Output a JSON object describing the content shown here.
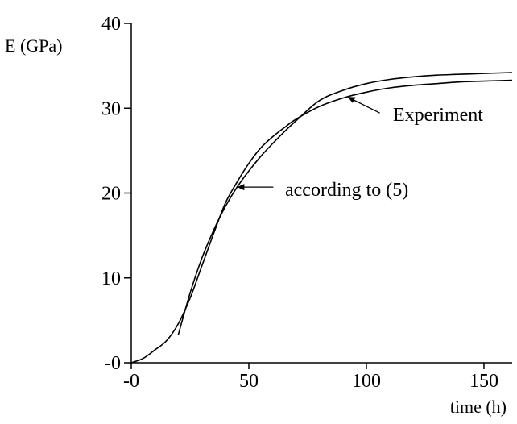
{
  "chart_data": {
    "type": "line",
    "title": "",
    "xlabel": "time (h)",
    "ylabel": "E (GPa)",
    "xlim": [
      0,
      162
    ],
    "ylim": [
      0,
      40
    ],
    "grid": false,
    "x_ticks": [
      {
        "value": 0,
        "label": "-0"
      },
      {
        "value": 50,
        "label": "50"
      },
      {
        "value": 100,
        "label": "100"
      },
      {
        "value": 150,
        "label": "150"
      }
    ],
    "y_ticks": [
      {
        "value": 0,
        "label": "-0"
      },
      {
        "value": 10,
        "label": "10"
      },
      {
        "value": 20,
        "label": "20"
      },
      {
        "value": 30,
        "label": "30"
      },
      {
        "value": 40,
        "label": "40"
      }
    ],
    "series": [
      {
        "name": "Experiment",
        "color": "#000000",
        "x": [
          0,
          5,
          10,
          15,
          20,
          25,
          30,
          35,
          40,
          45,
          50,
          55,
          60,
          65,
          70,
          80,
          90,
          100,
          110,
          120,
          130,
          140,
          150,
          162
        ],
        "y": [
          0.0,
          0.5,
          1.5,
          2.6,
          4.6,
          7.6,
          11.4,
          15.2,
          18.8,
          21.3,
          23.5,
          25.3,
          26.6,
          27.7,
          28.7,
          30.2,
          31.2,
          31.9,
          32.4,
          32.7,
          32.9,
          33.1,
          33.2,
          33.3
        ]
      },
      {
        "name": "according to (5)",
        "color": "#000000",
        "x": [
          20,
          25,
          30,
          35,
          40,
          45,
          50,
          55,
          60,
          65,
          70,
          80,
          90,
          100,
          110,
          120,
          130,
          140,
          150,
          162
        ],
        "y": [
          3.3,
          8.2,
          12.3,
          15.6,
          18.4,
          20.7,
          22.6,
          24.3,
          25.8,
          27.2,
          28.5,
          30.9,
          32.1,
          32.9,
          33.4,
          33.7,
          33.9,
          34.0,
          34.1,
          34.2
        ]
      }
    ],
    "annotations": [
      {
        "text": "Experiment",
        "series": 0,
        "at_x": 92
      },
      {
        "text": "according to (5)",
        "series": 1,
        "at_x": 45
      }
    ]
  }
}
